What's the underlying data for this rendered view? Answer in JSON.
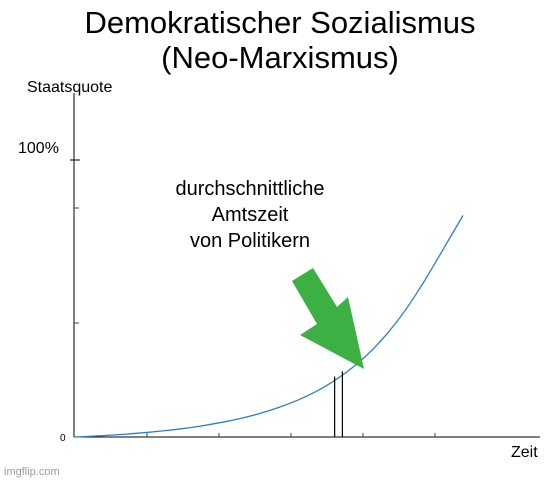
{
  "chart_data": {
    "type": "line",
    "title": [
      "Demokratischer Sozialismus",
      "(Neo-Marxismus)"
    ],
    "xlabel": "Zeit",
    "ylabel": "Staatsquote",
    "y_ticks": [
      {
        "value": 0,
        "label": "0"
      },
      {
        "value": 100,
        "label": "100%"
      }
    ],
    "x": [
      0,
      5,
      10,
      15,
      20,
      25,
      30,
      35,
      40,
      45,
      50,
      55,
      60,
      65,
      70,
      75,
      80,
      85,
      90,
      95,
      100
    ],
    "y": [
      0,
      0.3,
      0.7,
      1.2,
      1.8,
      2.5,
      3.4,
      4.5,
      5.8,
      7.4,
      9.4,
      11.8,
      14.8,
      18.5,
      23.2,
      29.0,
      36.3,
      45.2,
      56.0,
      68.0,
      80.0
    ],
    "color": "#2f7fbf",
    "annotation": {
      "lines": [
        "durchschnittliche",
        "Amtszeit",
        "von Politikern"
      ],
      "arrow_color": "#3cb043",
      "marker_x": [
        67,
        69
      ]
    },
    "grid": false,
    "legend": "none"
  },
  "watermark": "imgflip.com"
}
